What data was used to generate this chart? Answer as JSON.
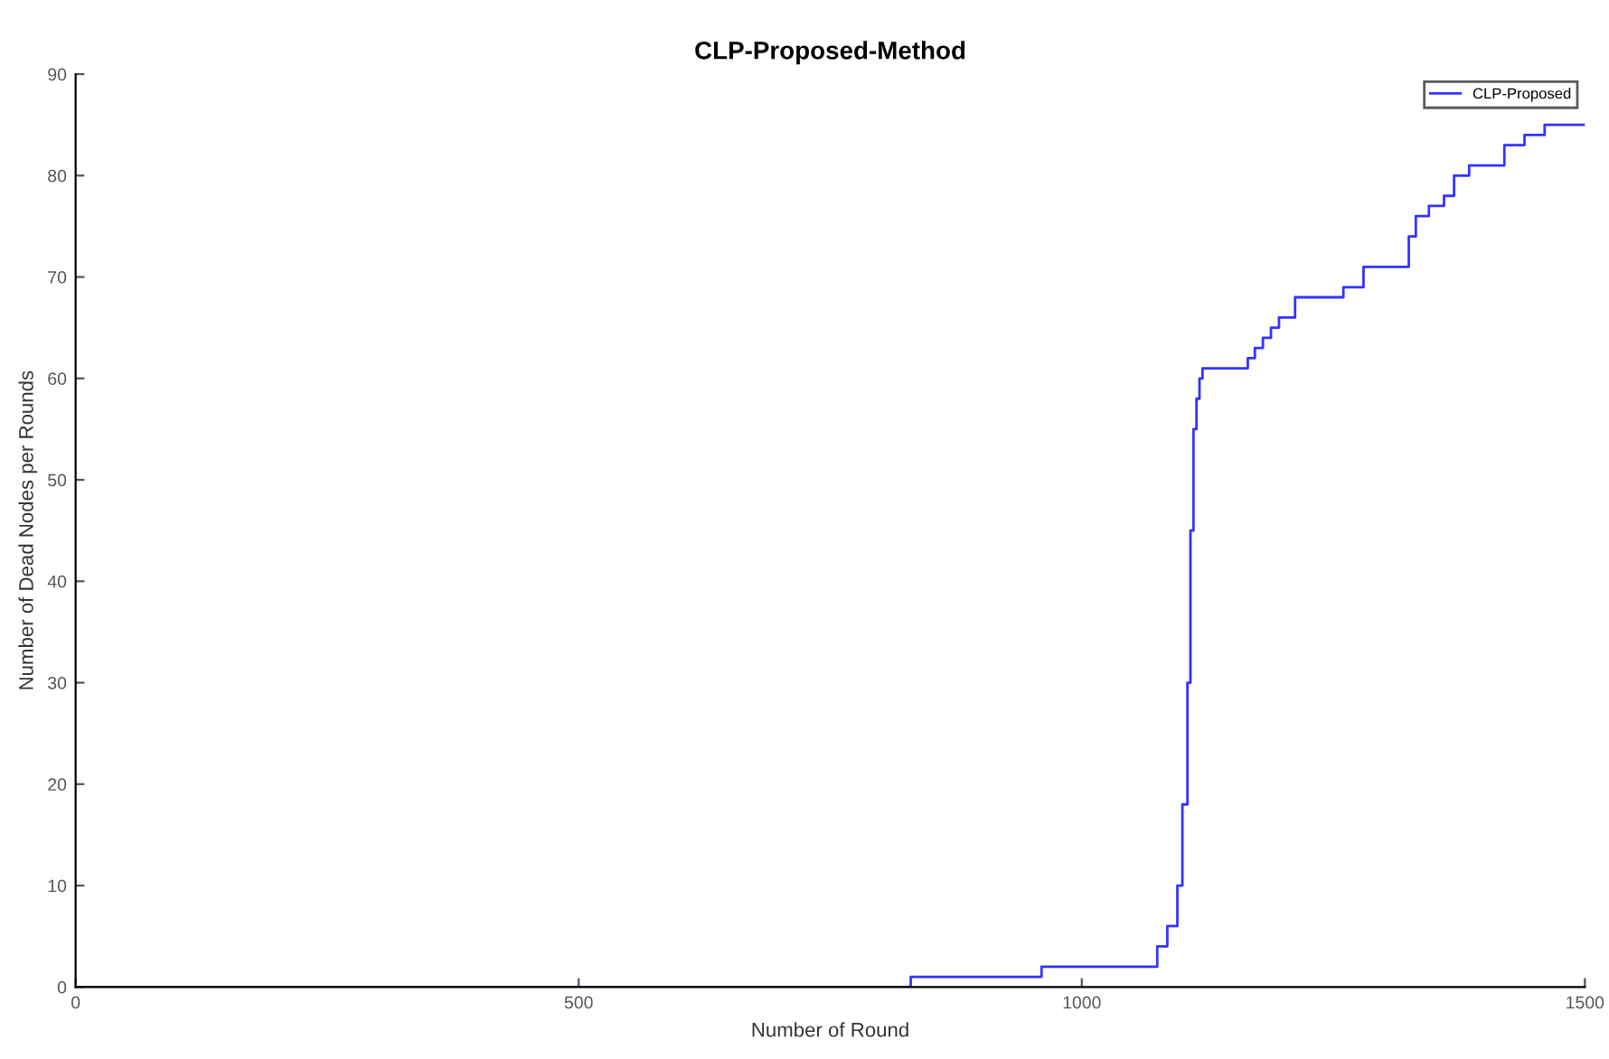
{
  "chart_data": {
    "type": "step",
    "title": "CLP-Proposed-Method",
    "xlabel": "Number of Round",
    "ylabel": "Number of Dead Nodes per Rounds",
    "xlim": [
      0,
      1500
    ],
    "xticks": [
      0,
      500,
      1000,
      1500
    ],
    "ylim": [
      0,
      90
    ],
    "yticks": [
      0,
      10,
      20,
      30,
      40,
      50,
      60,
      70,
      80,
      90
    ],
    "grid": false,
    "legend": "top right",
    "series": [
      {
        "name": "CLP-Proposed",
        "color": "#3333ff",
        "x": [
          0,
          830,
          960,
          1075,
          1085,
          1095,
          1100,
          1105,
          1108,
          1111,
          1114,
          1117,
          1120,
          1125,
          1165,
          1172,
          1180,
          1188,
          1196,
          1204,
          1212,
          1225,
          1260,
          1265,
          1280,
          1320,
          1325,
          1332,
          1345,
          1360,
          1370,
          1385,
          1410,
          1420,
          1440,
          1460,
          1500
        ],
        "values": [
          0,
          1,
          2,
          4,
          6,
          10,
          18,
          30,
          45,
          55,
          58,
          60,
          61,
          61,
          62,
          63,
          64,
          65,
          66,
          66,
          68,
          68,
          69,
          69,
          71,
          71,
          74,
          76,
          77,
          78,
          80,
          81,
          81,
          83,
          84,
          85,
          85
        ]
      }
    ]
  }
}
